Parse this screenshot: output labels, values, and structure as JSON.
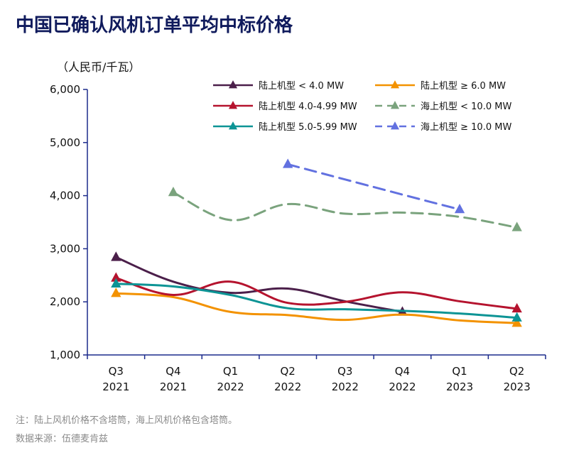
{
  "title": "中国已确认风机订单平均中标价格",
  "notes": [
    "注：陆上风机价格不含塔筒，海上风机价格包含塔筒。",
    "数据来源：伍德麦肯兹"
  ],
  "chart_data": {
    "type": "line",
    "ylabel": "（人民币/千瓦）",
    "xlabel": "",
    "categories": [
      [
        "Q3",
        "2021"
      ],
      [
        "Q4",
        "2021"
      ],
      [
        "Q1",
        "2022"
      ],
      [
        "Q2",
        "2022"
      ],
      [
        "Q3",
        "2022"
      ],
      [
        "Q4",
        "2022"
      ],
      [
        "Q1",
        "2023"
      ],
      [
        "Q2",
        "2023"
      ]
    ],
    "ylim": [
      1000,
      6000
    ],
    "yticks": [
      1000,
      2000,
      3000,
      4000,
      5000,
      6000
    ],
    "ytick_labels": [
      "1,000",
      "2,000",
      "3,000",
      "4,000",
      "5,000",
      "6,000"
    ],
    "grid": false,
    "legend_position": "top-right",
    "series": [
      {
        "name": "陆上机型 < 4.0 MW",
        "color": "#4b1f4a",
        "dashed": false,
        "values": [
          2840,
          2380,
          2170,
          2250,
          2010,
          1810,
          null,
          null
        ]
      },
      {
        "name": "陆上机型 ≥ 6.0 MW",
        "color": "#f39200",
        "dashed": false,
        "values": [
          2160,
          2090,
          1810,
          1750,
          1660,
          1760,
          1650,
          1600
        ]
      },
      {
        "name": "陆上机型 4.0-4.99 MW",
        "color": "#b5132e",
        "dashed": false,
        "values": [
          2450,
          2130,
          2380,
          1980,
          2000,
          2180,
          2010,
          1870
        ]
      },
      {
        "name": "海上机型 < 10.0 MW",
        "color": "#7aa37d",
        "dashed": true,
        "values": [
          null,
          4060,
          3540,
          3840,
          3660,
          3680,
          3600,
          3400
        ]
      },
      {
        "name": "陆上机型 5.0-5.99 MW",
        "color": "#0d9495",
        "dashed": false,
        "values": [
          2340,
          2290,
          2130,
          1880,
          1860,
          1830,
          1780,
          1700
        ]
      },
      {
        "name": "海上机型 ≥ 10.0 MW",
        "color": "#6271e0",
        "dashed": true,
        "values": [
          null,
          null,
          null,
          4590,
          null,
          4020,
          3740,
          null
        ]
      }
    ]
  }
}
